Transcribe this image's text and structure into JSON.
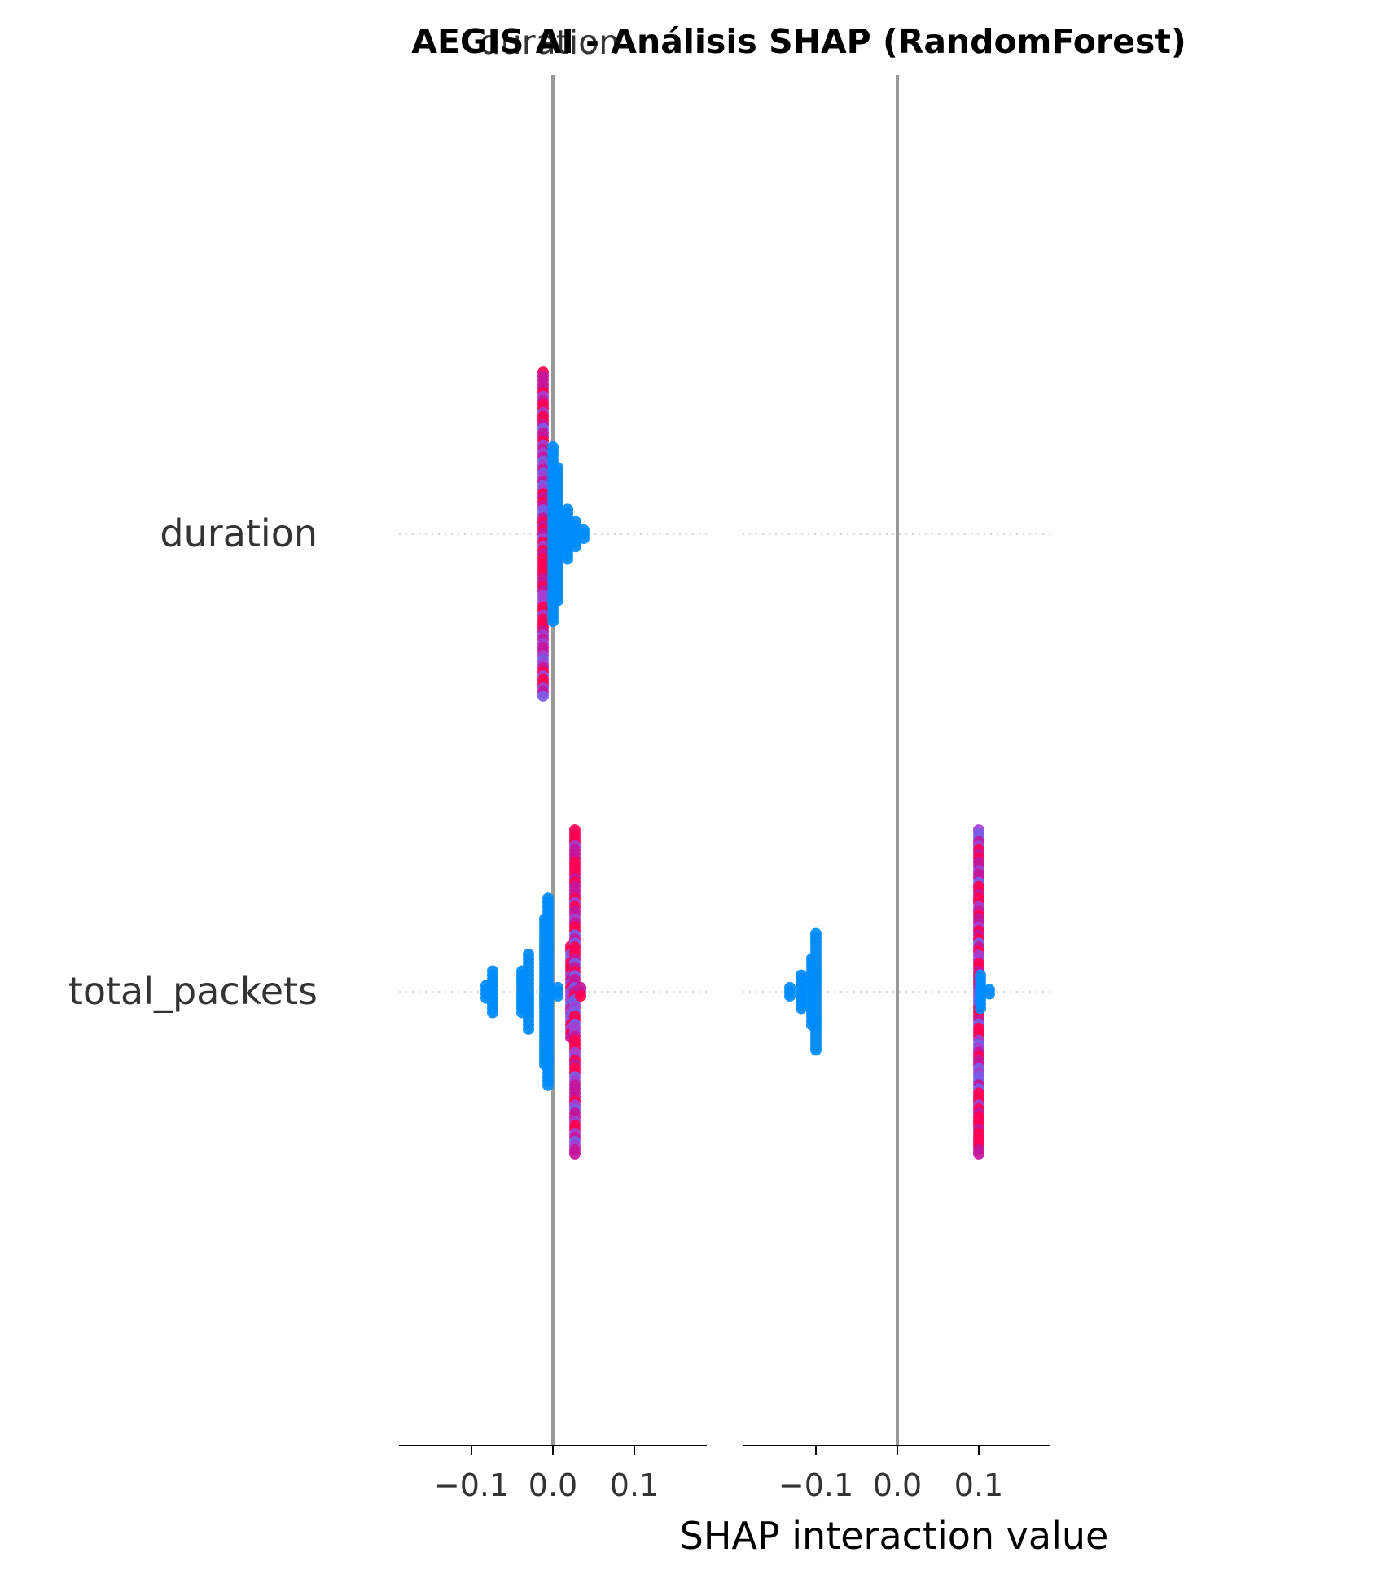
{
  "chart_data": {
    "type": "scatter",
    "title": "AEGIS AI - Análisis SHAP (RandomForest)",
    "subtitle": "duration",
    "xlabel": "SHAP interaction value",
    "features": [
      "duration",
      "total_packets"
    ],
    "panels": [
      {
        "xlim": [
          -0.19,
          0.19
        ],
        "xticks": [
          -0.1,
          0.0,
          0.1
        ],
        "xtick_labels": [
          "−0.1",
          "0.0",
          "0.1"
        ],
        "strips": [
          {
            "feature": "duration",
            "points": [
              {
                "x": -0.012,
                "min": -0.78,
                "max": 0.78,
                "color": "mix"
              },
              {
                "x": 0.0,
                "min": -0.42,
                "max": 0.42,
                "color": "blue"
              },
              {
                "x": 0.006,
                "min": -0.32,
                "max": 0.32,
                "color": "blue"
              },
              {
                "x": 0.018,
                "min": -0.12,
                "max": 0.12,
                "color": "blue"
              },
              {
                "x": 0.028,
                "min": -0.06,
                "max": 0.06,
                "color": "blue"
              },
              {
                "x": 0.038,
                "min": -0.02,
                "max": 0.02,
                "color": "blue"
              }
            ]
          },
          {
            "feature": "total_packets",
            "points": [
              {
                "x": -0.082,
                "min": -0.03,
                "max": 0.03,
                "color": "blue"
              },
              {
                "x": -0.074,
                "min": -0.1,
                "max": 0.1,
                "color": "blue"
              },
              {
                "x": -0.038,
                "min": -0.1,
                "max": 0.1,
                "color": "blue"
              },
              {
                "x": -0.03,
                "min": -0.18,
                "max": 0.18,
                "color": "blue"
              },
              {
                "x": -0.01,
                "min": -0.35,
                "max": 0.35,
                "color": "blue"
              },
              {
                "x": -0.006,
                "min": -0.45,
                "max": 0.45,
                "color": "blue"
              },
              {
                "x": 0.006,
                "min": -0.02,
                "max": 0.02,
                "color": "blue"
              },
              {
                "x": 0.022,
                "min": -0.22,
                "max": 0.22,
                "color": "mix"
              },
              {
                "x": 0.027,
                "min": -0.78,
                "max": 0.78,
                "color": "mix"
              },
              {
                "x": 0.034,
                "min": -0.02,
                "max": 0.02,
                "color": "mix"
              }
            ]
          }
        ]
      },
      {
        "xlim": [
          -0.19,
          0.19
        ],
        "xticks": [
          -0.1,
          0.0,
          0.1
        ],
        "xtick_labels": [
          "−0.1",
          "0.0",
          "0.1"
        ],
        "strips": [
          {
            "feature": "total_packets",
            "points": [
              {
                "x": -0.132,
                "min": -0.02,
                "max": 0.02,
                "color": "blue"
              },
              {
                "x": -0.118,
                "min": -0.08,
                "max": 0.08,
                "color": "blue"
              },
              {
                "x": -0.105,
                "min": -0.16,
                "max": 0.16,
                "color": "blue"
              },
              {
                "x": -0.1,
                "min": -0.28,
                "max": 0.28,
                "color": "blue"
              },
              {
                "x": 0.1,
                "min": -0.78,
                "max": 0.78,
                "color": "mix"
              },
              {
                "x": 0.102,
                "min": -0.08,
                "max": 0.08,
                "color": "blue"
              },
              {
                "x": 0.113,
                "min": -0.01,
                "max": 0.01,
                "color": "blue"
              }
            ]
          }
        ]
      }
    ],
    "colors": {
      "high": "#ff0052",
      "low": "#008bfb",
      "mid": "#a33fd0",
      "zero_line": "#999999",
      "axis": "#000000"
    },
    "grid": false,
    "legend": "none"
  }
}
